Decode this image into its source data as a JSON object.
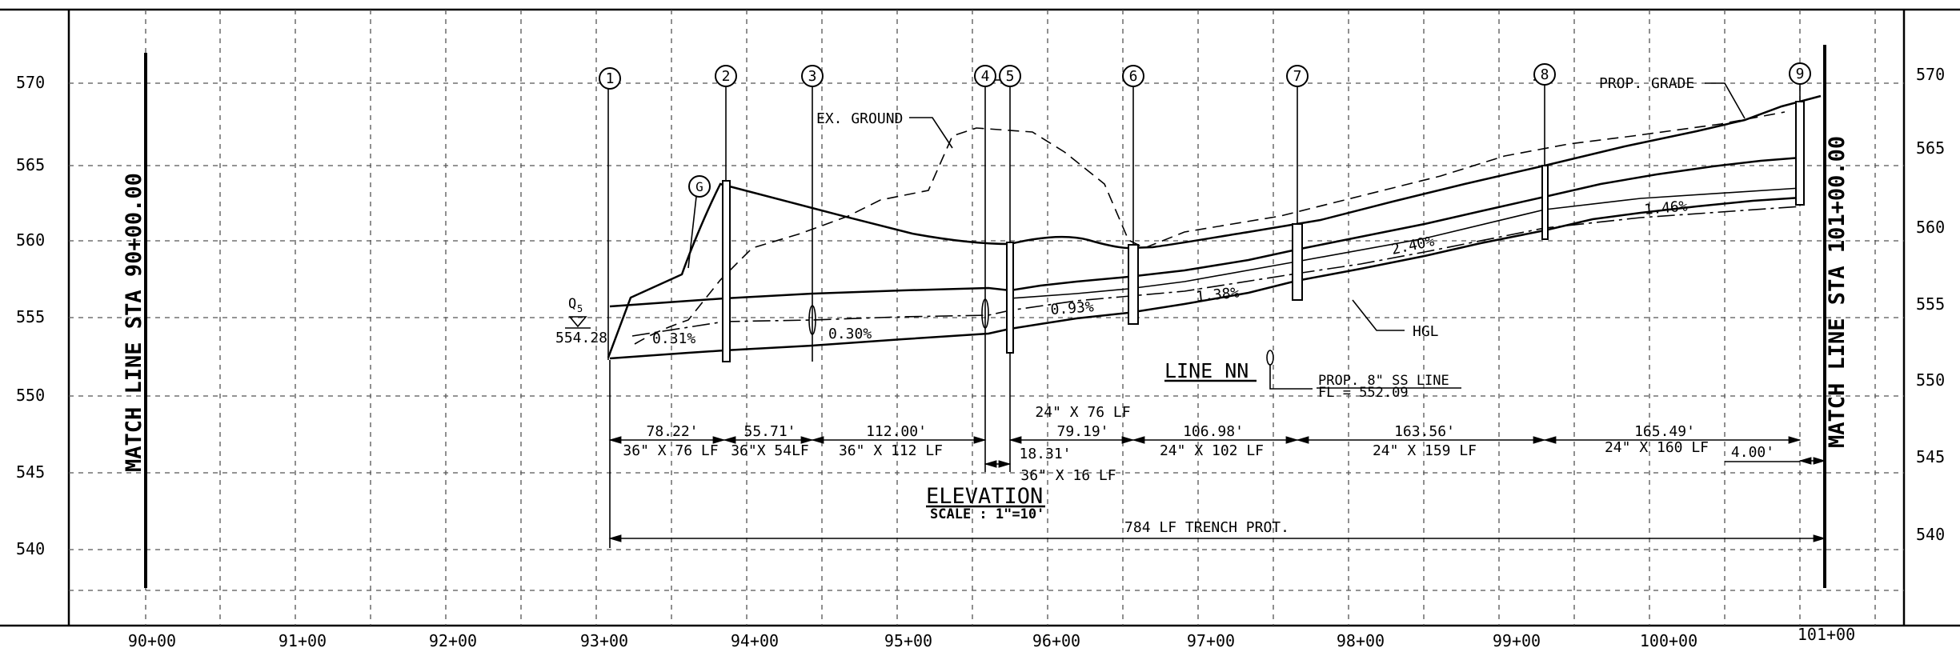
{
  "drawing": {
    "elevation_labels": [
      "570",
      "565",
      "560",
      "555",
      "550",
      "545",
      "540"
    ],
    "station_labels": [
      "90+00",
      "91+00",
      "92+00",
      "93+00",
      "94+00",
      "95+00",
      "96+00",
      "97+00",
      "98+00",
      "99+00",
      "100+00",
      "101+00"
    ],
    "match_line_left": "MATCH LINE STA 90+00.00",
    "match_line_right": "MATCH LINE STA 101+00.00",
    "structures": [
      "1",
      "2",
      "3",
      "4",
      "5",
      "6",
      "7",
      "8",
      "9"
    ],
    "grate_marker": "G",
    "callouts": {
      "ex_ground": "EX. GROUND",
      "prop_grade": "PROP. GRADE",
      "hgl": "HGL",
      "q_label": "Q",
      "q_sub": "5",
      "q_elev": "554.28",
      "line_name": "LINE NN",
      "ss_line": "PROP. 8\" SS LINE",
      "ss_fl": "FL = 552.09"
    },
    "slopes": [
      "0.31%",
      "0.30%",
      "0.93%",
      "1.38%",
      "2.40%",
      "1.46%"
    ],
    "segment_lengths": [
      "78.22'",
      "55.71'",
      "112.00'",
      "18.31'",
      "79.19'",
      "106.98'",
      "163.56'",
      "165.49'",
      "4.00'"
    ],
    "pipe_labels": [
      "36\" X 76 LF",
      "36\"X 54LF",
      "36\" X 112 LF",
      "36\" X 16 LF",
      "24\" X 76 LF",
      "24\" X 102 LF",
      "24\" X 159 LF",
      "24\" X 160 LF"
    ],
    "title": "ELEVATION",
    "scale": "SCALE : 1\"=10'",
    "trench": "784 LF TRENCH PROT."
  }
}
